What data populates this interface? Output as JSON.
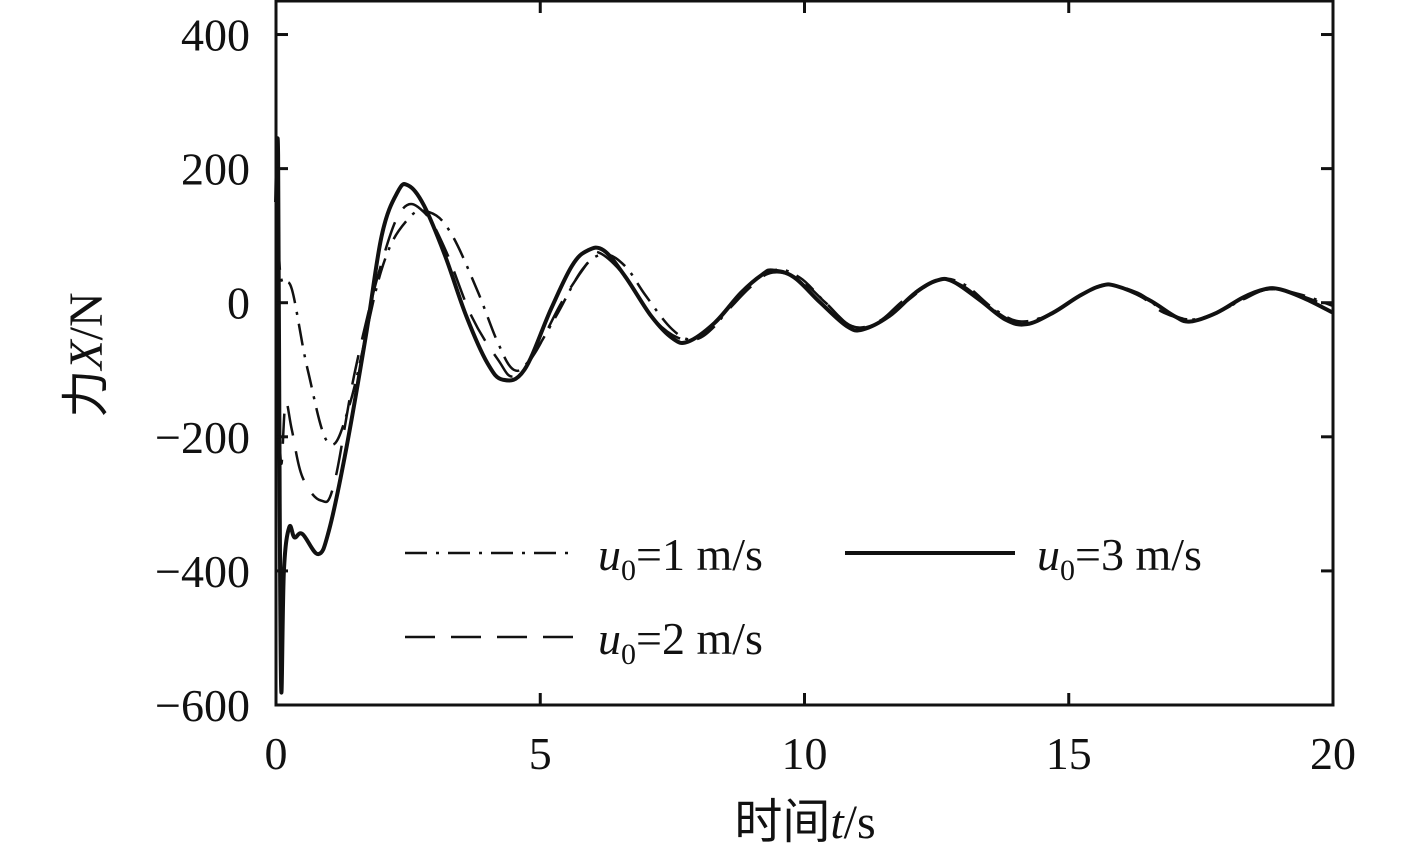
{
  "chart_data": {
    "type": "line",
    "xlabel": {
      "prefix": "时间",
      "var": "t",
      "unit": "/s"
    },
    "ylabel": {
      "prefix": "力",
      "var": "X",
      "unit": "/N"
    },
    "xlim": [
      0,
      20
    ],
    "ylim": [
      -600,
      450
    ],
    "x_ticks": [
      0,
      5,
      10,
      15,
      20
    ],
    "y_ticks": [
      -600,
      -400,
      -200,
      0,
      200,
      400
    ],
    "x_tick_labels": [
      "0",
      "5",
      "10",
      "15",
      "20"
    ],
    "y_tick_labels": [
      "−600",
      "−400",
      "−200",
      "0",
      "200",
      "400"
    ],
    "grid": false,
    "legend_position": "lower-center",
    "series": [
      {
        "name": "u0=1 m/s",
        "legend": {
          "var": "u",
          "sub": "0",
          "rest": "=1 m/s"
        },
        "style": "dash-dot",
        "points": [
          [
            0,
            210
          ],
          [
            0.05,
            80
          ],
          [
            0.12,
            30
          ],
          [
            0.3,
            20
          ],
          [
            0.6,
            -100
          ],
          [
            1.0,
            -210
          ],
          [
            1.4,
            -150
          ],
          [
            2.0,
            50
          ],
          [
            2.5,
            125
          ],
          [
            2.9,
            135
          ],
          [
            3.3,
            105
          ],
          [
            3.8,
            20
          ],
          [
            4.2,
            -60
          ],
          [
            4.5,
            -100
          ],
          [
            4.8,
            -85
          ],
          [
            5.3,
            -20
          ],
          [
            5.8,
            50
          ],
          [
            6.2,
            72
          ],
          [
            6.6,
            55
          ],
          [
            7.0,
            10
          ],
          [
            7.5,
            -40
          ],
          [
            7.9,
            -55
          ],
          [
            8.3,
            -35
          ],
          [
            8.8,
            15
          ],
          [
            9.4,
            48
          ],
          [
            9.9,
            38
          ],
          [
            10.4,
            0
          ],
          [
            10.9,
            -35
          ],
          [
            11.4,
            -30
          ],
          [
            11.9,
            0
          ],
          [
            12.5,
            33
          ],
          [
            13.0,
            28
          ],
          [
            13.6,
            -10
          ],
          [
            14.1,
            -28
          ],
          [
            14.7,
            -15
          ],
          [
            15.2,
            10
          ],
          [
            15.7,
            26
          ],
          [
            16.3,
            15
          ],
          [
            16.8,
            -12
          ],
          [
            17.3,
            -25
          ],
          [
            17.8,
            -15
          ],
          [
            18.3,
            5
          ],
          [
            18.8,
            20
          ],
          [
            19.4,
            12
          ],
          [
            20,
            -5
          ]
        ]
      },
      {
        "name": "u0=2 m/s",
        "legend": {
          "var": "u",
          "sub": "0",
          "rest": "=2 m/s"
        },
        "style": "dashed",
        "points": [
          [
            0,
            210
          ],
          [
            0.05,
            -120
          ],
          [
            0.1,
            -240
          ],
          [
            0.18,
            -150
          ],
          [
            0.3,
            -190
          ],
          [
            0.5,
            -260
          ],
          [
            0.85,
            -295
          ],
          [
            1.1,
            -270
          ],
          [
            1.5,
            -100
          ],
          [
            2.0,
            60
          ],
          [
            2.4,
            140
          ],
          [
            2.8,
            135
          ],
          [
            3.2,
            80
          ],
          [
            3.7,
            -20
          ],
          [
            4.2,
            -85
          ],
          [
            4.5,
            -110
          ],
          [
            4.9,
            -75
          ],
          [
            5.4,
            0
          ],
          [
            5.9,
            60
          ],
          [
            6.1,
            75
          ],
          [
            6.6,
            40
          ],
          [
            7.1,
            -20
          ],
          [
            7.6,
            -52
          ],
          [
            8.0,
            -50
          ],
          [
            8.5,
            -15
          ],
          [
            9.0,
            25
          ],
          [
            9.4,
            45
          ],
          [
            9.9,
            35
          ],
          [
            10.4,
            0
          ],
          [
            10.9,
            -35
          ],
          [
            11.4,
            -28
          ],
          [
            11.9,
            5
          ],
          [
            12.5,
            33
          ],
          [
            13.0,
            25
          ],
          [
            13.6,
            -12
          ],
          [
            14.1,
            -30
          ],
          [
            14.7,
            -15
          ],
          [
            15.2,
            10
          ],
          [
            15.7,
            27
          ],
          [
            16.3,
            12
          ],
          [
            16.8,
            -15
          ],
          [
            17.3,
            -25
          ],
          [
            17.8,
            -15
          ],
          [
            18.3,
            5
          ],
          [
            18.8,
            20
          ],
          [
            19.4,
            10
          ],
          [
            20,
            -8
          ]
        ]
      },
      {
        "name": "u0=3 m/s",
        "legend": {
          "var": "u",
          "sub": "0",
          "rest": "=3 m/s"
        },
        "style": "solid",
        "points": [
          [
            0,
            150
          ],
          [
            0.04,
            220
          ],
          [
            0.07,
            -300
          ],
          [
            0.1,
            -580
          ],
          [
            0.15,
            -400
          ],
          [
            0.25,
            -335
          ],
          [
            0.35,
            -350
          ],
          [
            0.5,
            -345
          ],
          [
            0.8,
            -375
          ],
          [
            1.0,
            -340
          ],
          [
            1.3,
            -230
          ],
          [
            1.7,
            -50
          ],
          [
            2.0,
            100
          ],
          [
            2.3,
            165
          ],
          [
            2.5,
            175
          ],
          [
            2.8,
            145
          ],
          [
            3.2,
            70
          ],
          [
            3.6,
            -20
          ],
          [
            4.0,
            -90
          ],
          [
            4.3,
            -115
          ],
          [
            4.7,
            -100
          ],
          [
            5.2,
            -10
          ],
          [
            5.6,
            55
          ],
          [
            5.9,
            78
          ],
          [
            6.2,
            78
          ],
          [
            6.6,
            40
          ],
          [
            7.1,
            -20
          ],
          [
            7.5,
            -53
          ],
          [
            7.8,
            -58
          ],
          [
            8.3,
            -30
          ],
          [
            8.8,
            15
          ],
          [
            9.2,
            42
          ],
          [
            9.4,
            48
          ],
          [
            9.8,
            38
          ],
          [
            10.3,
            0
          ],
          [
            10.8,
            -35
          ],
          [
            11.1,
            -40
          ],
          [
            11.6,
            -20
          ],
          [
            12.1,
            15
          ],
          [
            12.5,
            33
          ],
          [
            12.8,
            32
          ],
          [
            13.3,
            5
          ],
          [
            13.8,
            -25
          ],
          [
            14.2,
            -32
          ],
          [
            14.7,
            -15
          ],
          [
            15.2,
            10
          ],
          [
            15.6,
            25
          ],
          [
            15.9,
            25
          ],
          [
            16.5,
            5
          ],
          [
            17.0,
            -20
          ],
          [
            17.3,
            -28
          ],
          [
            17.8,
            -15
          ],
          [
            18.3,
            8
          ],
          [
            18.7,
            20
          ],
          [
            19.0,
            20
          ],
          [
            19.5,
            5
          ],
          [
            20,
            -15
          ]
        ]
      }
    ]
  }
}
